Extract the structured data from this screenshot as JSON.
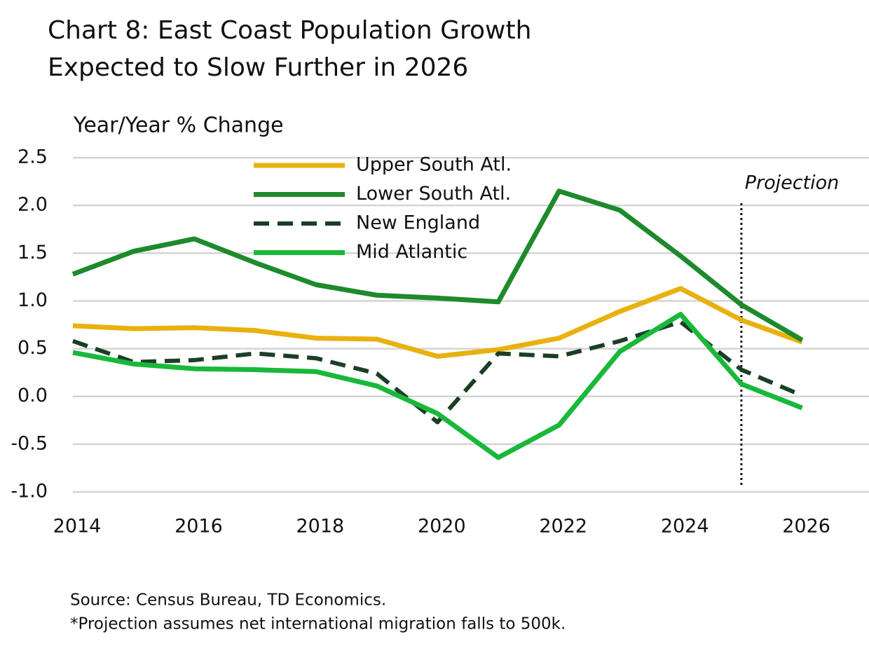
{
  "chart_data": {
    "type": "line",
    "title": "Chart 8: East Coast Population Growth",
    "title_line2": "Expected to Slow Further in 2026",
    "y_label": "Year/Year % Change",
    "x": [
      2014,
      2015,
      2016,
      2017,
      2018,
      2019,
      2020,
      2021,
      2022,
      2023,
      2024,
      2025,
      2026
    ],
    "series": [
      {
        "name": "Upper South Atl.",
        "color": "#e8b10e",
        "style": "solid",
        "values": [
          0.74,
          0.71,
          0.72,
          0.69,
          0.61,
          0.6,
          0.42,
          0.49,
          0.61,
          0.89,
          1.13,
          0.8,
          0.57
        ]
      },
      {
        "name": "Lower South Atl.",
        "color": "#1e8a2c",
        "style": "solid",
        "values": [
          1.28,
          1.52,
          1.65,
          1.4,
          1.17,
          1.06,
          1.03,
          0.99,
          2.15,
          1.95,
          1.47,
          0.96,
          0.59
        ]
      },
      {
        "name": "New England",
        "color": "#1b3f25",
        "style": "dashed",
        "values": [
          0.58,
          0.36,
          0.38,
          0.45,
          0.4,
          0.24,
          -0.27,
          0.45,
          0.42,
          0.58,
          0.78,
          0.28,
          0.01
        ]
      },
      {
        "name": "Mid Atlantic",
        "color": "#19b83a",
        "style": "solid",
        "values": [
          0.46,
          0.34,
          0.29,
          0.28,
          0.26,
          0.11,
          -0.18,
          -0.64,
          -0.3,
          0.47,
          0.86,
          0.13,
          -0.12
        ]
      }
    ],
    "xlim": [
      2014,
      2027.1
    ],
    "xticks": [
      2014,
      2016,
      2018,
      2020,
      2022,
      2024,
      2026
    ],
    "ylim": [
      -1.0,
      2.5
    ],
    "yticks": [
      {
        "value": -1.0,
        "label": "-1.0"
      },
      -0.5,
      {
        "value": 0.0,
        "label": "0.0"
      },
      0.5,
      {
        "value": 1.0,
        "label": "1.0"
      },
      1.5,
      {
        "value": 2.0,
        "label": "2.0"
      },
      2.5
    ],
    "grid": true,
    "projection_x": 2025,
    "projection_label": "Projection",
    "source": "Source: Census Bureau, TD Economics.",
    "note": "*Projection assumes net international migration falls to 500k."
  }
}
